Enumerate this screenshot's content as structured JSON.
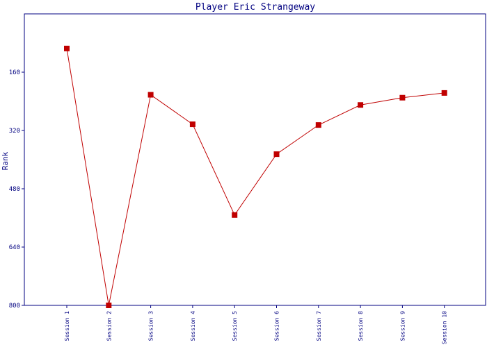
{
  "chart_data": {
    "type": "line",
    "title": "Player Eric Strangeway",
    "xlabel": "",
    "ylabel": "Rank",
    "y_inverted": true,
    "ylim": [
      800,
      0
    ],
    "yticks": [
      "160",
      "320",
      "480",
      "640",
      "800"
    ],
    "categories": [
      "Session 1",
      "Session 2",
      "Session 3",
      "Session 4",
      "Session 5",
      "Session 6",
      "Session 7",
      "Session 8",
      "Session 9",
      "Session 10"
    ],
    "series": [
      {
        "values": [
          95,
          800,
          222,
          303,
          552,
          385,
          305,
          250,
          230,
          217
        ]
      }
    ],
    "grid": false,
    "colors": {
      "line": "#c00000",
      "marker": "#c00000",
      "axis": "#000080",
      "text": "#000080"
    }
  }
}
